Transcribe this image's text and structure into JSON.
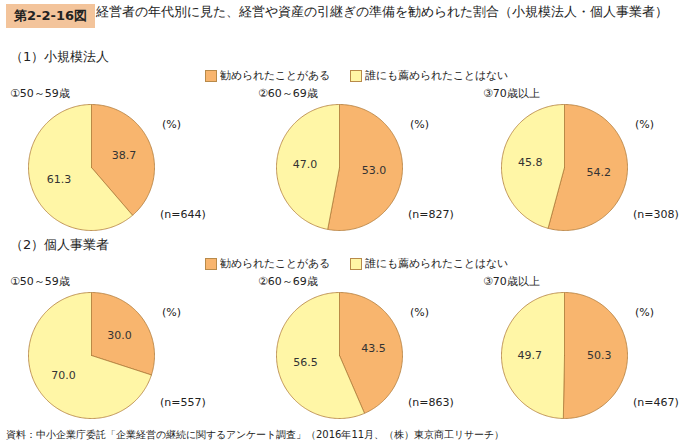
{
  "figure_label": "第2-2-16図",
  "title": "経営者の年代別に見た、経営や資産の引継ぎの準備を勧められた割合（小規模法人・個人事業者）",
  "source": "資料：中小企業庁委託「企業経営の継続に関するアンケート調査」（2016年11月、（株）東京商工リサーチ）",
  "chart_data": [
    {
      "type": "pie",
      "group": "（1）小規模法人",
      "title": "①50～59歳",
      "unit_label": "(%)",
      "note": "(n=644)",
      "categories": [
        "勧められたことがある",
        "誰にも薦められたことはない"
      ],
      "values": [
        38.7,
        61.3
      ],
      "colors": [
        "#f8b56e",
        "#fff6a6"
      ],
      "data_labels": true
    },
    {
      "type": "pie",
      "group": "（1）小規模法人",
      "title": "②60～69歳",
      "unit_label": "(%)",
      "note": "(n=827)",
      "categories": [
        "勧められたことがある",
        "誰にも薦められたことはない"
      ],
      "values": [
        53.0,
        47.0
      ],
      "value_labels": [
        "53.0",
        "47.0"
      ],
      "colors": [
        "#f8b56e",
        "#fff6a6"
      ],
      "data_labels": true
    },
    {
      "type": "pie",
      "group": "（1）小規模法人",
      "title": "③70歳以上",
      "unit_label": "(%)",
      "note": "(n=308)",
      "categories": [
        "勧められたことがある",
        "誰にも薦められたことはない"
      ],
      "values": [
        54.2,
        45.8
      ],
      "colors": [
        "#f8b56e",
        "#fff6a6"
      ],
      "data_labels": true
    },
    {
      "type": "pie",
      "group": "（2）個人事業者",
      "title": "①50～59歳",
      "unit_label": "(%)",
      "note": "(n=557)",
      "categories": [
        "勧められたことがある",
        "誰にも薦められたことはない"
      ],
      "values": [
        30.0,
        70.0
      ],
      "value_labels": [
        "30.0",
        "70.0"
      ],
      "colors": [
        "#f8b56e",
        "#fff6a6"
      ],
      "data_labels": true
    },
    {
      "type": "pie",
      "group": "（2）個人事業者",
      "title": "②60～69歳",
      "unit_label": "(%)",
      "note": "(n=863)",
      "categories": [
        "勧められたことがある",
        "誰にも薦められたことはない"
      ],
      "values": [
        43.5,
        56.5
      ],
      "colors": [
        "#f8b56e",
        "#fff6a6"
      ],
      "data_labels": true
    },
    {
      "type": "pie",
      "group": "（2）個人事業者",
      "title": "③70歳以上",
      "unit_label": "(%)",
      "note": "(n=467)",
      "categories": [
        "勧められたことがある",
        "誰にも薦められたことはない"
      ],
      "values": [
        50.3,
        49.7
      ],
      "colors": [
        "#f8b56e",
        "#fff6a6"
      ],
      "data_labels": true
    }
  ]
}
